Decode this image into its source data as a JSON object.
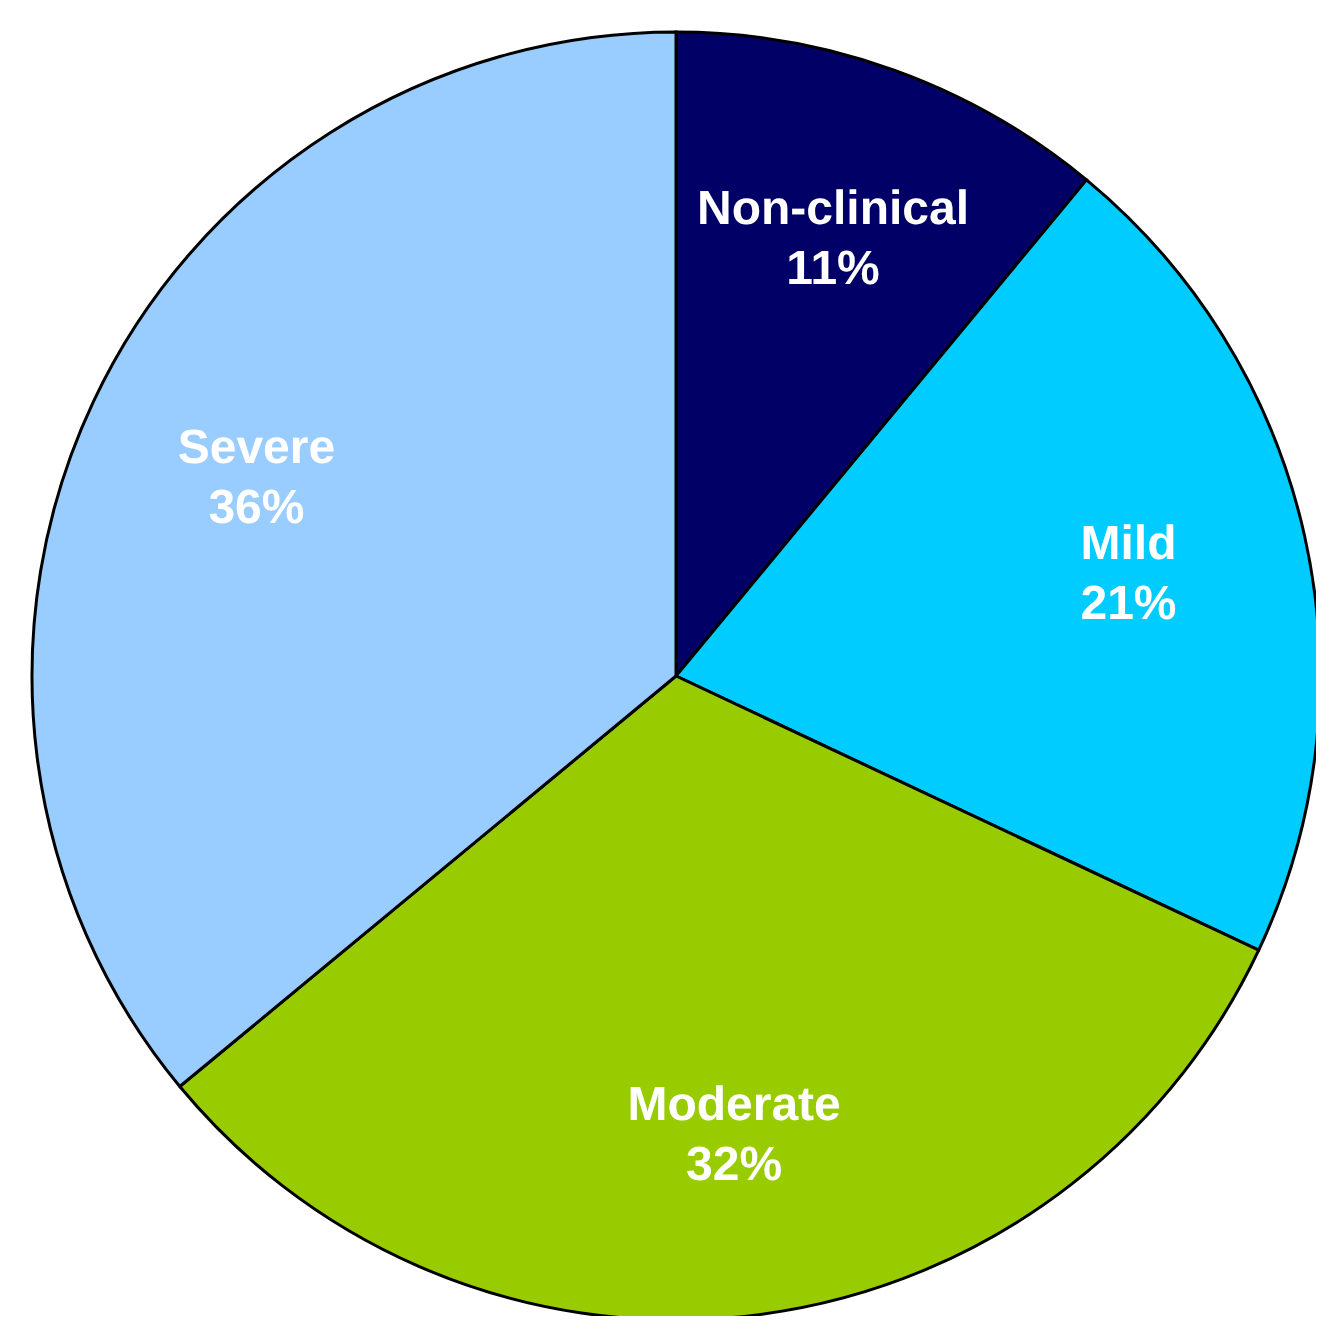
{
  "chart_data": {
    "type": "pie",
    "categories": [
      "Non-clinical",
      "Mild",
      "Moderate",
      "Severe"
    ],
    "values": [
      11,
      21,
      32,
      36
    ],
    "colors": [
      "#000066",
      "#00ccff",
      "#99cc00",
      "#99ccff"
    ],
    "value_labels": [
      "11%",
      "21%",
      "32%",
      "36%"
    ]
  }
}
